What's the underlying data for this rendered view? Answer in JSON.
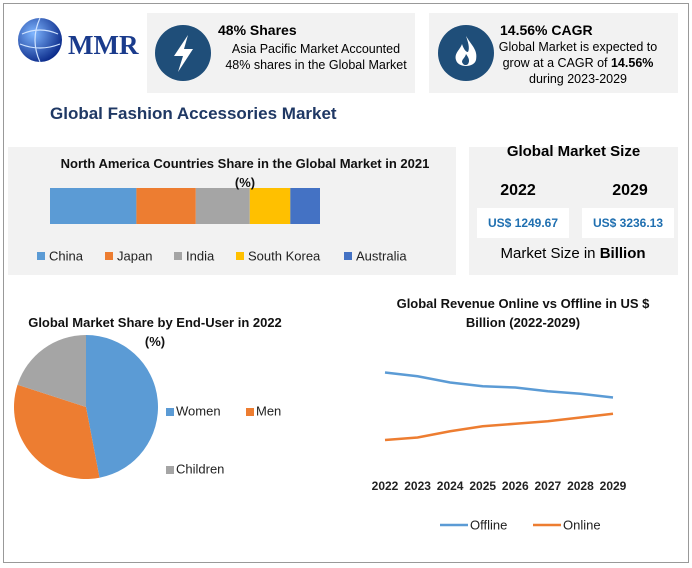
{
  "header": {
    "logo": "MMR",
    "title": "Global Fashion Accessories Market"
  },
  "stats": [
    {
      "title": "48% Shares",
      "text": "Asia Pacific Market Accounted 48% shares in the Global Market"
    },
    {
      "title": "14.56% CAGR",
      "text_parts": [
        "Global Market is expected to grow at a CAGR of ",
        "14.56%",
        " during 2023-2029"
      ]
    }
  ],
  "market_size": {
    "title": "Global Market Size",
    "years": [
      "2022",
      "2029"
    ],
    "values": [
      "US$ 1249.67",
      "US$ 3236.13"
    ],
    "note_parts": [
      "Market Size in ",
      "Billion"
    ]
  },
  "chart_data": [
    {
      "type": "bar",
      "orientation": "horizontal",
      "stacked": true,
      "title": "North America Countries Share in the Global Market in 2021 (%)",
      "xlim": [
        0,
        100
      ],
      "series": [
        {
          "name": "China",
          "color": "#5b9bd5",
          "values": [
            32
          ]
        },
        {
          "name": "Japan",
          "color": "#ed7d31",
          "values": [
            22
          ]
        },
        {
          "name": "India",
          "color": "#a5a5a5",
          "values": [
            20
          ]
        },
        {
          "name": "South Korea",
          "color": "#ffc000",
          "values": [
            15
          ]
        },
        {
          "name": "Australia",
          "color": "#4472c4",
          "values": [
            11
          ]
        }
      ]
    },
    {
      "type": "pie",
      "title": "Global Market Share by End-User in 2022 (%)",
      "categories": [
        "Women",
        "Men",
        "Children"
      ],
      "values": [
        47,
        33,
        20
      ],
      "colors": [
        "#5b9bd5",
        "#ed7d31",
        "#a5a5a5"
      ]
    },
    {
      "type": "line",
      "title": "Global Revenue Online vs Offline in US $ Billion (2022-2029)",
      "categories": [
        "2022",
        "2023",
        "2024",
        "2025",
        "2026",
        "2027",
        "2028",
        "2029"
      ],
      "ylim": [
        0,
        100
      ],
      "series": [
        {
          "name": "Offline",
          "color": "#5b9bd5",
          "values": [
            74,
            71,
            66,
            63,
            62,
            59,
            57,
            54
          ]
        },
        {
          "name": "Online",
          "color": "#ed7d31",
          "values": [
            20,
            22,
            27,
            31,
            33,
            35,
            38,
            41
          ]
        }
      ]
    }
  ]
}
